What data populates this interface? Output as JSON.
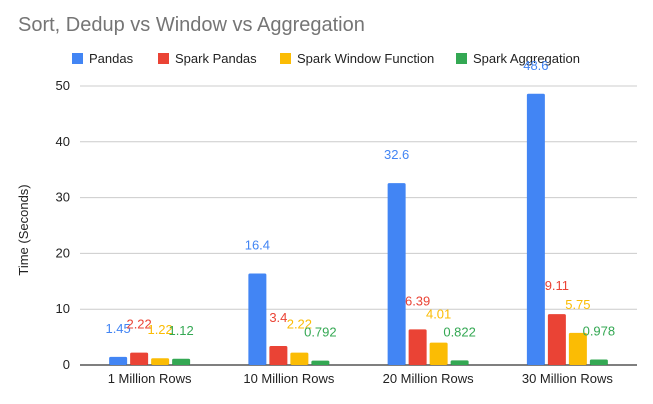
{
  "chart_data": {
    "type": "bar",
    "title": "Sort, Dedup vs Window vs Aggregation",
    "xlabel": "",
    "ylabel": "Time (Seconds)",
    "ylim": [
      0,
      50
    ],
    "yticks": [
      0,
      10,
      20,
      30,
      40,
      50
    ],
    "grid": true,
    "legend_position": "top",
    "categories": [
      "1 Million Rows",
      "10 Million Rows",
      "20 Million Rows",
      "30 Million Rows"
    ],
    "series": [
      {
        "name": "Pandas",
        "color": "#4285F4",
        "values": [
          1.45,
          16.4,
          32.6,
          48.6
        ],
        "labels": [
          "1.45",
          "16.4",
          "32.6",
          "48.6"
        ]
      },
      {
        "name": "Spark Pandas",
        "color": "#EA4335",
        "values": [
          2.22,
          3.4,
          6.39,
          9.11
        ],
        "labels": [
          "2.22",
          "3.4",
          "6.39",
          "9.11"
        ]
      },
      {
        "name": "Spark Window Function",
        "color": "#FBBC04",
        "values": [
          1.22,
          2.22,
          4.01,
          5.75
        ],
        "labels": [
          "1.22",
          "2.22",
          "4.01",
          "5.75"
        ]
      },
      {
        "name": "Spark Aggregation",
        "color": "#34A853",
        "values": [
          1.12,
          0.792,
          0.822,
          0.978
        ],
        "labels": [
          "1.12",
          "0.792",
          "0.822",
          "0.978"
        ]
      }
    ]
  }
}
